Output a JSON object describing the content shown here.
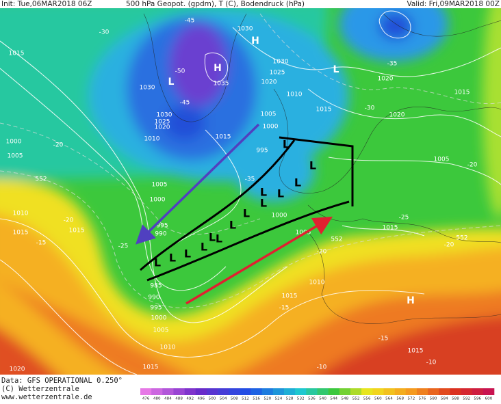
{
  "header": {
    "init": "Init: Tue,06MAR2018 06Z",
    "title": "500 hPa Geopot. (gpdm), T (C), Bodendruck (hPa)",
    "valid": "Valid: Fri,09MAR2018 00Z"
  },
  "footer": {
    "data": "Data: GFS OPERATIONAL 0.250°",
    "copyright": "(C) Wetterzentrale",
    "url": "www.wetterzentrale.de"
  },
  "scale": {
    "labels": [
      476,
      480,
      484,
      488,
      492,
      496,
      500,
      504,
      508,
      512,
      516,
      520,
      524,
      528,
      532,
      536,
      540,
      544,
      548,
      552,
      556,
      560,
      564,
      568,
      572,
      576,
      580,
      584,
      588,
      592,
      596,
      600
    ]
  },
  "map": {
    "labels": [
      "1030",
      "H",
      "-45",
      "H",
      "-50",
      "L",
      "1035",
      "1030",
      "-45",
      "1030",
      "1025",
      "1020",
      "1010",
      "1015",
      "-30",
      "1000",
      "1005",
      "-20",
      "1030",
      "1025",
      "1020",
      "L",
      "1010",
      "1005",
      "1000",
      "1015",
      "995",
      "1015",
      "1020",
      "-35",
      "1015",
      "1020",
      "-30",
      "1005",
      "-20",
      "1005",
      "1000",
      "-35",
      "995",
      "990",
      "-25",
      "1010",
      "1015",
      "-20",
      "-15",
      "1015",
      "1000",
      "1005",
      "552",
      "-20",
      "1015",
      "-25",
      "-20",
      "552",
      "1010",
      "1015",
      "-15",
      "H",
      "1005",
      "1010",
      "1015",
      "1020",
      "-15",
      "1015",
      "-10",
      "-10",
      "552",
      "L",
      "L",
      "L",
      "L",
      "L",
      "L",
      "L",
      "L",
      "L",
      "L",
      "L",
      "L",
      "L",
      "L",
      "985",
      "990",
      "995",
      "1000"
    ]
  }
}
